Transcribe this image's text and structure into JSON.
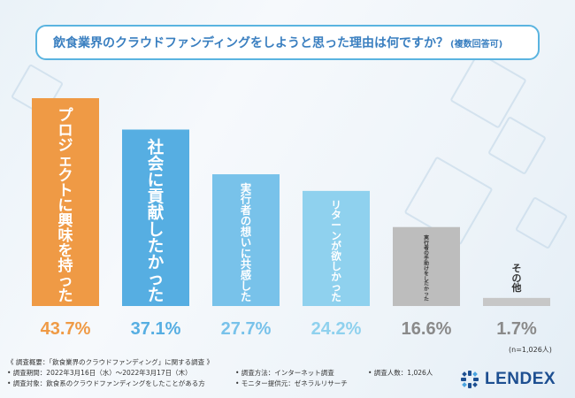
{
  "title": {
    "main": "飲食業界のクラウドファンディングをしようと思った理由は何ですか？",
    "sub": "(複数回答可)"
  },
  "note": "(n=1,026人)",
  "chart_data": {
    "type": "bar",
    "categories": [
      "プロジェクトに興味を持った",
      "社会に貢献したかった",
      "実行者の想いに共感した",
      "リターンが欲しかった",
      "実行者の手助けをしたかった",
      "その他"
    ],
    "values": [
      43.7,
      37.1,
      27.7,
      24.2,
      16.6,
      1.7
    ],
    "value_labels": [
      "43.7%",
      "37.1%",
      "27.7%",
      "24.2%",
      "16.6%",
      "1.7%"
    ],
    "colors": [
      "#ef9a45",
      "#56aee2",
      "#78c2ea",
      "#8fd1ee",
      "#bdbdbd",
      "#c7c7c7"
    ],
    "label_colors": [
      "#ffffff",
      "#ffffff",
      "#ffffff",
      "#ffffff",
      "#333333",
      "#333333"
    ],
    "value_colors": [
      "#ef9a45",
      "#56aee2",
      "#78c2ea",
      "#8fd1ee",
      "#8a8a8a",
      "#8a8a8a"
    ],
    "ylim": [
      0,
      45
    ]
  },
  "footer": {
    "overview": "《 調査概要：「飲食業界のクラウドファンディング」に関する調査 》",
    "period": "• 調査期間：2022年3月16日（水）〜2022年3月17日（木）",
    "target": "• 調査対象：飲食系のクラウドファンディングをしたことがある方",
    "method": "• 調査方法：インターネット調査",
    "monitor": "• モニター提供元：ゼネラルリサーチ",
    "count": "• 調査人数：1,026人"
  },
  "logo": {
    "text": "LENDEX",
    "color": "#1d4f91"
  }
}
